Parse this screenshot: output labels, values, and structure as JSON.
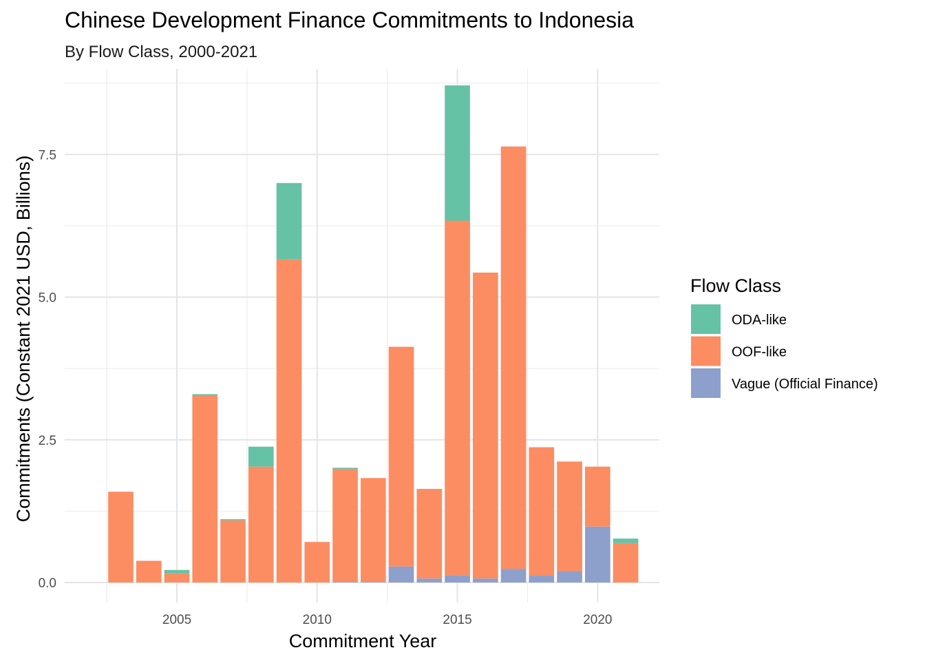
{
  "chart_data": {
    "type": "bar",
    "stacked": true,
    "title": "Chinese Development Finance Commitments to Indonesia",
    "subtitle": "By Flow Class, 2000-2021",
    "xlabel": "Commitment Year",
    "ylabel": "Commitments (Constant 2021 USD, Billions)",
    "x_ticks": [
      2005,
      2010,
      2015,
      2020
    ],
    "y_ticks": [
      0.0,
      2.5,
      5.0,
      7.5
    ],
    "y_tick_labels": [
      "0.0",
      "2.5",
      "5.0",
      "7.5"
    ],
    "xlim": [
      2001,
      2022.2
    ],
    "ylim": [
      -0.35,
      9.0
    ],
    "grid": true,
    "legend": {
      "title": "Flow Class",
      "position": "right"
    },
    "years": [
      2003,
      2004,
      2005,
      2006,
      2007,
      2008,
      2009,
      2010,
      2011,
      2012,
      2013,
      2014,
      2015,
      2016,
      2017,
      2018,
      2019,
      2020,
      2021
    ],
    "series": [
      {
        "name": "Vague (Official Finance)",
        "color": "#8da0cb",
        "values": [
          0,
          0,
          0,
          0,
          0,
          0,
          0,
          0,
          0.01,
          0.01,
          0.28,
          0.07,
          0.13,
          0.07,
          0.24,
          0.12,
          0.2,
          0.98,
          0
        ]
      },
      {
        "name": "OOF-like",
        "color": "#fc8d62",
        "values": [
          1.59,
          0.38,
          0.16,
          3.27,
          1.09,
          2.03,
          5.66,
          0.71,
          1.98,
          1.82,
          3.85,
          1.57,
          6.21,
          5.36,
          7.4,
          2.25,
          1.92,
          1.05,
          0.69
        ]
      },
      {
        "name": "ODA-like",
        "color": "#66c2a5",
        "values": [
          0,
          0,
          0.06,
          0.03,
          0.02,
          0.35,
          1.34,
          0,
          0.02,
          0,
          0,
          0,
          2.37,
          0,
          0,
          0,
          0,
          0,
          0.08
        ]
      }
    ],
    "legend_order": [
      "ODA-like",
      "OOF-like",
      "Vague (Official Finance)"
    ]
  }
}
